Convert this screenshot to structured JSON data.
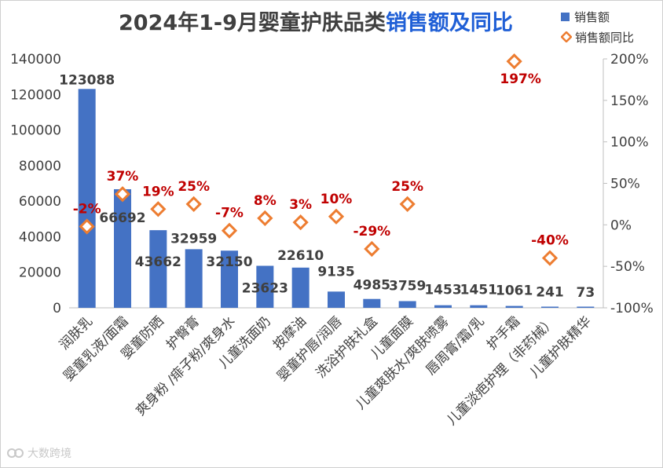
{
  "title": {
    "main": "2024年1-9月婴童护肤品类",
    "highlight": "销售额及同比"
  },
  "legend": {
    "bar_label": "销售额",
    "line_label": "销售额同比"
  },
  "watermark": "大数跨境",
  "colors": {
    "bar": "#4472c4",
    "marker_fill": "#ffffff",
    "marker_stroke": "#ed7d31",
    "pct_label": "#c00000",
    "value_label": "#404040",
    "title_highlight": "#1f5fd6",
    "grid": "#d9d9d9"
  },
  "chart_data": {
    "type": "bar",
    "categories": [
      "润肤乳",
      "婴童乳液/面霜",
      "婴童防晒",
      "护臀膏",
      "爽身粉 /痱子粉/爽身水",
      "儿童洗面奶",
      "按摩油",
      "婴童护唇/润唇",
      "洗浴护肤礼盒",
      "儿童面膜",
      "儿童爽肤水/爽肤喷雾",
      "唇周膏/霜/乳",
      "护手霜",
      "儿童淡疤护理（非药械）",
      "儿童护肤精华"
    ],
    "series": [
      {
        "name": "销售额",
        "type": "bar",
        "axis": "left",
        "values": [
          123088,
          66692,
          43662,
          32959,
          32150,
          23623,
          22610,
          9135,
          4985,
          3759,
          1453,
          1451,
          1061,
          241,
          73
        ],
        "labels": [
          "123088",
          "66692",
          "43662",
          "32959",
          "32150",
          "23623",
          "22610",
          "9135",
          "4985",
          "3759",
          "1453",
          "1451",
          "1061",
          "241",
          "73"
        ]
      },
      {
        "name": "销售额同比",
        "type": "marker",
        "axis": "right",
        "values": [
          -2,
          37,
          19,
          25,
          -7,
          8,
          3,
          10,
          -29,
          25,
          null,
          null,
          197,
          -40,
          null
        ],
        "labels": [
          "-2%",
          "37%",
          "19%",
          "25%",
          "-7%",
          "8%",
          "3%",
          "10%",
          "-29%",
          "25%",
          "",
          "",
          "197%",
          "-40%",
          ""
        ]
      }
    ],
    "y_left": {
      "min": 0,
      "max": 140000,
      "ticks": [
        "0",
        "20000",
        "40000",
        "60000",
        "80000",
        "100000",
        "120000",
        "140000"
      ]
    },
    "y_right": {
      "min": -100,
      "max": 200,
      "ticks": [
        "-100%",
        "-50%",
        "0%",
        "50%",
        "100%",
        "150%",
        "200%"
      ]
    },
    "grid": false,
    "legend_position": "top-right"
  }
}
